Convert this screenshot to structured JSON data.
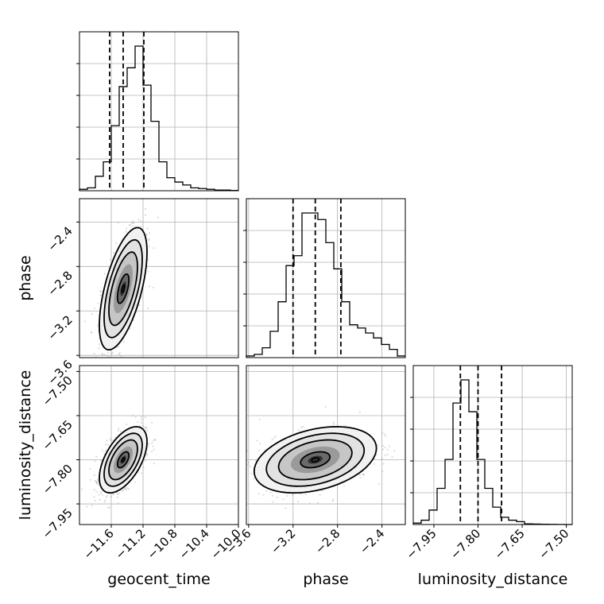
{
  "chart_data": {
    "type": "scatter",
    "subtype": "corner-plot",
    "parameters": [
      "geocent_time",
      "phase",
      "luminosity_distance"
    ],
    "axis_labels": {
      "geocent_time": "geocent_time",
      "phase": "phase",
      "luminosity_distance": "luminosity_distance"
    },
    "ranges": {
      "geocent_time": [
        -12.0,
        -10.0
      ],
      "phase": [
        -3.62,
        -2.19
      ],
      "luminosity_distance": [
        -8.02,
        -7.48
      ]
    },
    "ticks": {
      "geocent_time": [
        "-11.6",
        "-11.2",
        "-10.8",
        "-10.4",
        "-10.0"
      ],
      "phase": [
        "-3.6",
        "-3.2",
        "-2.8",
        "-2.4"
      ],
      "luminosity_distance": [
        "-7.95",
        "-7.80",
        "-7.65",
        "-7.50"
      ]
    },
    "ticks_values": {
      "geocent_time": [
        -11.6,
        -11.2,
        -10.8,
        -10.4,
        -10.0
      ],
      "phase": [
        -3.6,
        -3.2,
        -2.8,
        -2.4
      ],
      "luminosity_distance": [
        -7.95,
        -7.8,
        -7.65,
        -7.5
      ]
    },
    "quantiles": {
      "geocent_time": [
        -11.62,
        -11.45,
        -11.19
      ],
      "phase": [
        -3.2,
        -3.0,
        -2.77
      ],
      "luminosity_distance": [
        -7.86,
        -7.8,
        -7.72
      ]
    },
    "histograms": {
      "geocent_time": {
        "edges_start": -12.0,
        "bin_width": 0.1,
        "counts": [
          1,
          2,
          10,
          20,
          45,
          72,
          85,
          100,
          73,
          48,
          20,
          9,
          6,
          4,
          2,
          1.5,
          1,
          0.5,
          0.5,
          0.2
        ]
      },
      "phase": {
        "edges_start": -3.62,
        "bin_width": 0.0715,
        "counts": [
          1,
          2,
          6,
          16,
          34,
          56,
          62,
          88,
          88,
          84,
          70,
          54,
          34,
          20,
          18,
          15,
          12,
          8,
          5,
          1
        ]
      },
      "luminosity_distance": {
        "edges_start": -8.02,
        "bin_width": 0.027,
        "counts": [
          1,
          3,
          10,
          25,
          45,
          84,
          100,
          78,
          45,
          25,
          12,
          5,
          3,
          2,
          0.5,
          0.3,
          0.2,
          0.1,
          0.05,
          0
        ]
      }
    },
    "joint": [
      {
        "x": "geocent_time",
        "y": "phase",
        "mean": [
          -11.45,
          -3.0
        ],
        "sd": [
          0.12,
          0.22
        ],
        "rho": 0.6
      },
      {
        "x": "geocent_time",
        "y": "luminosity_distance",
        "mean": [
          -11.45,
          -7.8
        ],
        "sd": [
          0.12,
          0.045
        ],
        "rho": 0.55
      },
      {
        "x": "phase",
        "y": "luminosity_distance",
        "mean": [
          -3.0,
          -7.8
        ],
        "sd": [
          0.22,
          0.045
        ],
        "rho": 0.35
      }
    ],
    "grid": true,
    "legend": "none",
    "colors": {
      "lines": "#000000",
      "grid": "#b0b0b0",
      "scatter": "#9a9a9a"
    }
  }
}
